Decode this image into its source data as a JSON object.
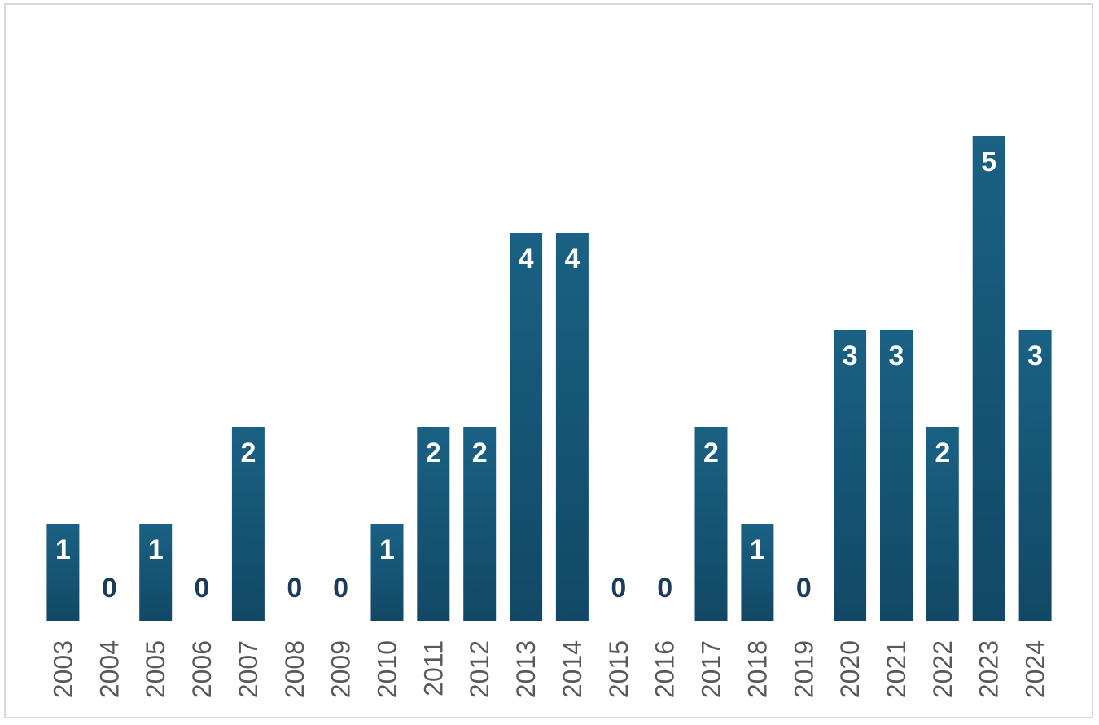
{
  "chart_data": {
    "type": "bar",
    "categories": [
      "2003",
      "2004",
      "2005",
      "2006",
      "2007",
      "2008",
      "2009",
      "2010",
      "2011",
      "2012",
      "2013",
      "2014",
      "2015",
      "2016",
      "2017",
      "2018",
      "2019",
      "2020",
      "2021",
      "2022",
      "2023",
      "2024"
    ],
    "values": [
      1,
      0,
      1,
      0,
      2,
      0,
      0,
      1,
      2,
      2,
      4,
      4,
      0,
      0,
      2,
      1,
      0,
      3,
      3,
      2,
      5,
      3
    ],
    "title": "",
    "xlabel": "",
    "ylabel": "",
    "ylim": [
      0,
      6
    ],
    "grid": false,
    "legend": "none",
    "data_labels": true,
    "x_tick_rotation": "vertical",
    "bar_color_top": "#1a6184",
    "bar_color_bottom": "#124866",
    "label_color_inside": "#ffffff",
    "label_color_outside": "#1b3a5c",
    "tick_color": "#595959"
  }
}
